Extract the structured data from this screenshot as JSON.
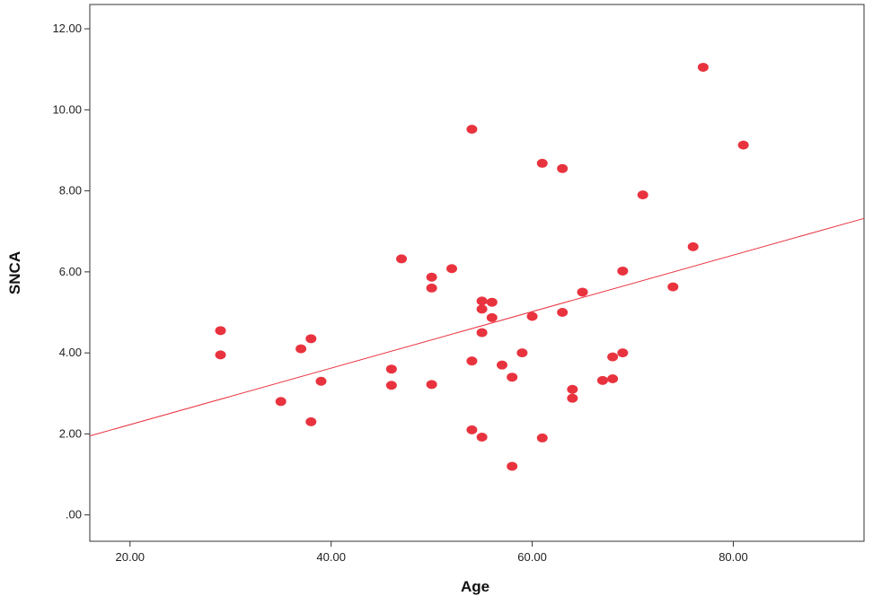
{
  "chart_data": {
    "type": "scatter",
    "xlabel": "Age",
    "ylabel": "SNCA",
    "xlim": [
      16,
      93
    ],
    "ylim": [
      -0.65,
      12.6
    ],
    "xticks": [
      20,
      40,
      60,
      80
    ],
    "xtick_labels": [
      "20.00",
      "40.00",
      "60.00",
      "80.00"
    ],
    "yticks": [
      0,
      2,
      4,
      6,
      8,
      10,
      12
    ],
    "ytick_labels": [
      ".00",
      "2.00",
      "4.00",
      "6.00",
      "8.00",
      "10.00",
      "12.00"
    ],
    "grid": false,
    "point_color": "#e8333f",
    "line_color": "#e8333f",
    "fit_line": {
      "x": [
        16,
        93
      ],
      "y": [
        1.95,
        7.32
      ]
    },
    "points": [
      {
        "x": 29,
        "y": 4.55
      },
      {
        "x": 29,
        "y": 3.95
      },
      {
        "x": 35,
        "y": 2.8
      },
      {
        "x": 37,
        "y": 4.1
      },
      {
        "x": 38,
        "y": 4.35
      },
      {
        "x": 38,
        "y": 2.3
      },
      {
        "x": 39,
        "y": 3.3
      },
      {
        "x": 46,
        "y": 3.6
      },
      {
        "x": 46,
        "y": 3.2
      },
      {
        "x": 47,
        "y": 6.32
      },
      {
        "x": 50,
        "y": 5.87
      },
      {
        "x": 50,
        "y": 5.6
      },
      {
        "x": 50,
        "y": 3.22
      },
      {
        "x": 52,
        "y": 6.08
      },
      {
        "x": 54,
        "y": 9.52
      },
      {
        "x": 54,
        "y": 3.8
      },
      {
        "x": 54,
        "y": 2.1
      },
      {
        "x": 55,
        "y": 5.28
      },
      {
        "x": 55,
        "y": 5.08
      },
      {
        "x": 55,
        "y": 4.5
      },
      {
        "x": 55,
        "y": 1.92
      },
      {
        "x": 56,
        "y": 5.25
      },
      {
        "x": 56,
        "y": 4.87
      },
      {
        "x": 57,
        "y": 3.7
      },
      {
        "x": 58,
        "y": 3.4
      },
      {
        "x": 58,
        "y": 1.2
      },
      {
        "x": 59,
        "y": 4.0
      },
      {
        "x": 60,
        "y": 4.9
      },
      {
        "x": 61,
        "y": 8.68
      },
      {
        "x": 61,
        "y": 1.9
      },
      {
        "x": 63,
        "y": 8.55
      },
      {
        "x": 63,
        "y": 5.0
      },
      {
        "x": 64,
        "y": 3.1
      },
      {
        "x": 64,
        "y": 2.88
      },
      {
        "x": 65,
        "y": 5.5
      },
      {
        "x": 67,
        "y": 3.32
      },
      {
        "x": 68,
        "y": 3.9
      },
      {
        "x": 68,
        "y": 3.36
      },
      {
        "x": 69,
        "y": 6.02
      },
      {
        "x": 69,
        "y": 4.0
      },
      {
        "x": 71,
        "y": 7.9
      },
      {
        "x": 74,
        "y": 5.63
      },
      {
        "x": 76,
        "y": 6.62
      },
      {
        "x": 77,
        "y": 11.05
      },
      {
        "x": 81,
        "y": 9.13
      }
    ]
  }
}
